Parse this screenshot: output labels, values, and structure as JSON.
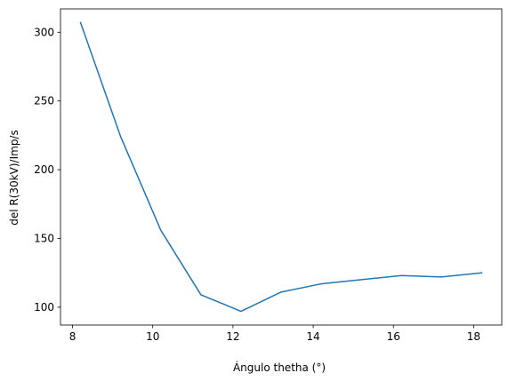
{
  "chart_data": {
    "type": "line",
    "title": "",
    "xlabel": "Ángulo thetha (°)",
    "ylabel": "del R(30kV)/Imp/s",
    "xlim": [
      7.7,
      18.7
    ],
    "ylim": [
      87,
      317
    ],
    "xticks": [
      8,
      10,
      12,
      14,
      16,
      18
    ],
    "yticks": [
      100,
      150,
      200,
      250,
      300
    ],
    "grid": false,
    "legend": "none",
    "series": [
      {
        "color": "#1f77b4",
        "x": [
          8.2,
          9.2,
          10.2,
          11.2,
          12.2,
          13.2,
          14.2,
          15.2,
          16.2,
          17.2,
          18.2
        ],
        "y": [
          307,
          224,
          156,
          109,
          97,
          111,
          117,
          120,
          123,
          122,
          125
        ]
      }
    ]
  }
}
